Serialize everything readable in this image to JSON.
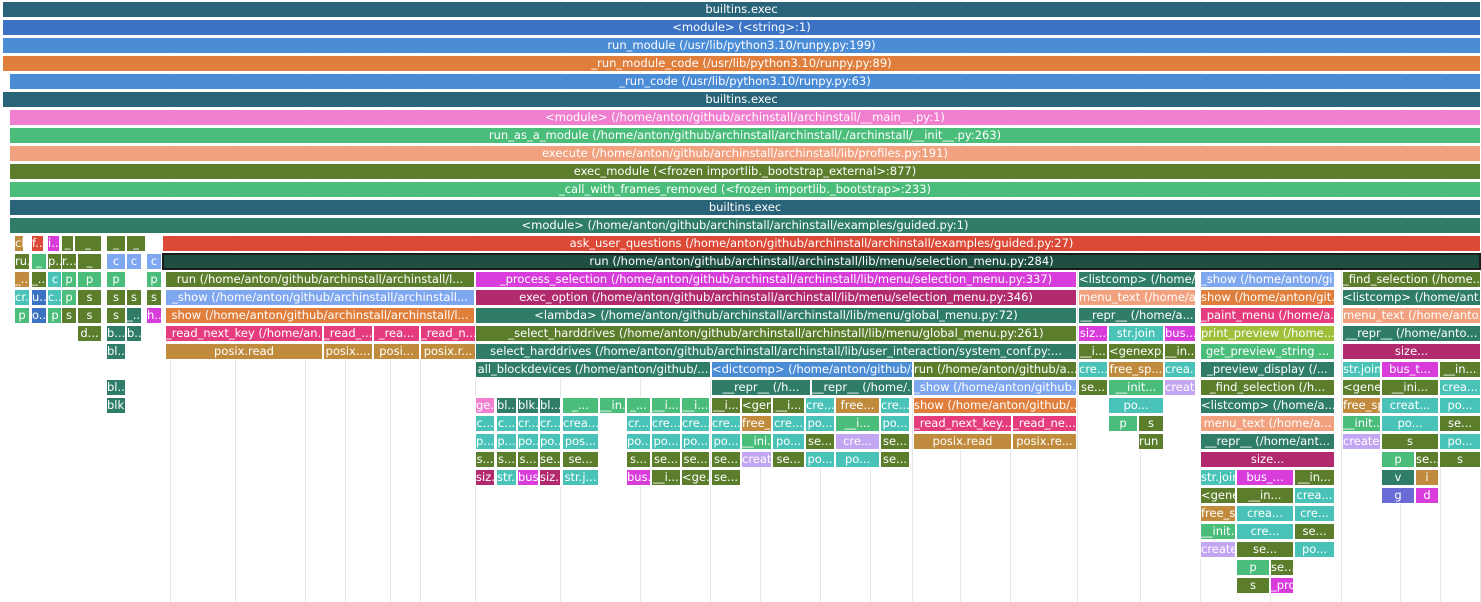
{
  "colors": {
    "c1": "#2a6478",
    "c2": "#3b72c4",
    "c3": "#4a8cd6",
    "c4": "#e07e3c",
    "c5": "#f07fd0",
    "c6": "#49bd79",
    "c7": "#f2a17f",
    "c8": "#5b7d2c",
    "c9": "#dd4937",
    "c10": "#1f4f42",
    "c11": "#d83ddb",
    "c12": "#b22a6e",
    "c13": "#2f7d68",
    "c14": "#e53c7e",
    "c15": "#c08b3c",
    "c16": "#49c2b8",
    "c17": "#7fa7f0",
    "c18": "#6b6bd6",
    "c19": "#9fbf3a",
    "c20": "#c2a6f2"
  },
  "frames": [
    {
      "label": "builtins.exec",
      "color": "c1"
    },
    {
      "label": "<module> (<string>:1)",
      "color": "c2"
    },
    {
      "label": "run_module (/usr/lib/python3.10/runpy.py:199)",
      "color": "c3"
    },
    {
      "label": "_run_module_code (/usr/lib/python3.10/runpy.py:89)",
      "color": "c4"
    },
    {
      "label": "_run_code (/usr/lib/python3.10/runpy.py:63)",
      "color": "c3"
    },
    {
      "label": "builtins.exec",
      "color": "c1"
    },
    {
      "label": "<module> (/home/anton/github/archinstall/archinstall/__main__.py:1)",
      "color": "c5"
    },
    {
      "label": "run_as_a_module (/home/anton/github/archinstall/archinstall/./archinstall/__init__.py:263)",
      "color": "c6"
    },
    {
      "label": "execute (/home/anton/github/archinstall/archinstall/lib/profiles.py:191)",
      "color": "c7"
    },
    {
      "label": "exec_module (<frozen importlib._bootstrap_external>:877)",
      "color": "c8"
    },
    {
      "label": "_call_with_frames_removed (<frozen importlib._bootstrap>:233)",
      "color": "c6"
    },
    {
      "label": "builtins.exec",
      "color": "c1"
    },
    {
      "label": "<module> (/home/anton/github/archinstall/archinstall/examples/guided.py:1)",
      "color": "c13"
    },
    {
      "label": "ask_user_questions (/home/anton/github/archinstall/archinstall/examples/guided.py:27)",
      "color": "c9"
    },
    {
      "label": "run (/home/anton/github/archinstall/archinstall/lib/menu/selection_menu.py:284)",
      "color": "c10"
    },
    {
      "label": "run (/home/anton/github/archinstall/archinstall/l...",
      "color": "c8"
    },
    {
      "label": "_show (/home/anton/github/archinstall/archinstall...",
      "color": "c17"
    },
    {
      "label": "show (/home/anton/github/archinstall/archinstall/l...",
      "color": "c4"
    },
    {
      "label": "_read_next_key (/home/an...",
      "color": "c14"
    },
    {
      "label": "_read_...",
      "color": "c14"
    },
    {
      "label": "_rea...",
      "color": "c14"
    },
    {
      "label": "_read_n...",
      "color": "c14"
    },
    {
      "label": "posix.read",
      "color": "c15"
    },
    {
      "label": "posix....",
      "color": "c15"
    },
    {
      "label": "posi...",
      "color": "c15"
    },
    {
      "label": "posix.r...",
      "color": "c15"
    },
    {
      "label": "_process_selection (/home/anton/github/archinstall/archinstall/lib/menu/selection_menu.py:337)",
      "color": "c11"
    },
    {
      "label": "exec_option (/home/anton/github/archinstall/archinstall/lib/menu/selection_menu.py:346)",
      "color": "c12"
    },
    {
      "label": "<lambda> (/home/anton/github/archinstall/archinstall/lib/menu/global_menu.py:72)",
      "color": "c13"
    },
    {
      "label": "_select_harddrives (/home/anton/github/archinstall/archinstall/lib/menu/global_menu.py:261)",
      "color": "c8"
    },
    {
      "label": "select_harddrives (/home/anton/github/archinstall/archinstall/lib/user_interaction/system_conf.py:...",
      "color": "c13"
    },
    {
      "label": "all_blockdevices (/home/anton/github/...",
      "color": "c13"
    },
    {
      "label": "<dictcomp> (/home/anton/github/archinstall/...",
      "color": "c3"
    },
    {
      "label": "__repr__ (/h...",
      "color": "c13"
    },
    {
      "label": "__repr__ (/home/...",
      "color": "c13"
    },
    {
      "label": "run (/home/anton/github/a...",
      "color": "c8"
    },
    {
      "label": "_show (/home/anton/github...",
      "color": "c17"
    },
    {
      "label": "show (/home/anton/github/...",
      "color": "c4"
    },
    {
      "label": "_read_next_key...",
      "color": "c14"
    },
    {
      "label": "_read_ne...",
      "color": "c14"
    },
    {
      "label": "posix.read",
      "color": "c15"
    },
    {
      "label": "posix.re...",
      "color": "c15"
    },
    {
      "label": "<listcomp> (/home/...",
      "color": "c13"
    },
    {
      "label": "menu_text (/home/a...",
      "color": "c7"
    },
    {
      "label": "__repr__ (/home/a...",
      "color": "c13"
    },
    {
      "label": "siz...",
      "color": "c11"
    },
    {
      "label": "str.join",
      "color": "c16"
    },
    {
      "label": "bus...",
      "color": "c11"
    },
    {
      "label": "__i...",
      "color": "c8"
    },
    {
      "label": "<genexp...",
      "color": "c8"
    },
    {
      "label": "__in...",
      "color": "c8"
    },
    {
      "label": "cre...",
      "color": "c16"
    },
    {
      "label": "free_sp...",
      "color": "c15"
    },
    {
      "label": "crea...",
      "color": "c16"
    },
    {
      "label": "se...",
      "color": "c8"
    },
    {
      "label": "__init...",
      "color": "c6"
    },
    {
      "label": "create...",
      "color": "c20"
    },
    {
      "label": "po...",
      "color": "c16"
    },
    {
      "label": "p",
      "color": "c6"
    },
    {
      "label": "s",
      "color": "c8"
    },
    {
      "label": "run (/home/anton/gith...",
      "color": "c8"
    },
    {
      "label": "_show (/home/anton/gi...",
      "color": "c17"
    },
    {
      "label": "show (/home/anton/git...",
      "color": "c4"
    },
    {
      "label": "_paint_menu (/home/a...",
      "color": "c14"
    },
    {
      "label": "print_preview (/home...",
      "color": "c19"
    },
    {
      "label": "get_preview_string ...",
      "color": "c6"
    },
    {
      "label": "_preview_display (/...",
      "color": "c13"
    },
    {
      "label": "_find_selection (/h...",
      "color": "c8"
    },
    {
      "label": "<listcomp> (/home/a...",
      "color": "c13"
    },
    {
      "label": "menu_text (/home/a...",
      "color": "c7"
    },
    {
      "label": "__repr__ (/home/ant...",
      "color": "c13"
    },
    {
      "label": "size...",
      "color": "c12"
    },
    {
      "label": "str.join",
      "color": "c16"
    },
    {
      "label": "bus_...",
      "color": "c11"
    },
    {
      "label": "__in...",
      "color": "c8"
    },
    {
      "label": "<genexp...",
      "color": "c8"
    },
    {
      "label": "__in...",
      "color": "c8"
    },
    {
      "label": "crea...",
      "color": "c16"
    },
    {
      "label": "free_sp...",
      "color": "c15"
    },
    {
      "label": "crea...",
      "color": "c16"
    },
    {
      "label": "cre...",
      "color": "c16"
    },
    {
      "label": "__init...",
      "color": "c6"
    },
    {
      "label": "cre...",
      "color": "c16"
    },
    {
      "label": "se...",
      "color": "c8"
    },
    {
      "label": "create...",
      "color": "c20"
    },
    {
      "label": "se...",
      "color": "c8"
    },
    {
      "label": "po...",
      "color": "c16"
    },
    {
      "label": "p",
      "color": "c6"
    },
    {
      "label": "se...",
      "color": "c8"
    },
    {
      "label": "s",
      "color": "c8"
    },
    {
      "label": "_process_selection (/home...",
      "color": "c11"
    },
    {
      "label": "_find_selection (/home...",
      "color": "c8"
    },
    {
      "label": "<listcomp> (/home/ant...",
      "color": "c13"
    },
    {
      "label": "menu_text (/home/anto...",
      "color": "c7"
    },
    {
      "label": "__repr__ (/home/anto...",
      "color": "c13"
    },
    {
      "label": "size...",
      "color": "c12"
    },
    {
      "label": "str.join",
      "color": "c16"
    },
    {
      "label": "bus_t...",
      "color": "c11"
    },
    {
      "label": "__in...",
      "color": "c8"
    },
    {
      "label": "<genexp...",
      "color": "c8"
    },
    {
      "label": "__ini...",
      "color": "c8"
    },
    {
      "label": "crea...",
      "color": "c16"
    },
    {
      "label": "free_sp...",
      "color": "c15"
    },
    {
      "label": "creat...",
      "color": "c16"
    },
    {
      "label": "po...",
      "color": "c16"
    },
    {
      "label": "__init...",
      "color": "c6"
    },
    {
      "label": "po...",
      "color": "c16"
    },
    {
      "label": "se...",
      "color": "c8"
    },
    {
      "label": "create...",
      "color": "c20"
    },
    {
      "label": "s",
      "color": "c8"
    },
    {
      "label": "po...",
      "color": "c16"
    },
    {
      "label": "p",
      "color": "c6"
    },
    {
      "label": "se...",
      "color": "c8"
    },
    {
      "label": "s",
      "color": "c8"
    },
    {
      "label": "v",
      "color": "c13"
    },
    {
      "label": "i",
      "color": "c15"
    },
    {
      "label": "g",
      "color": "c18"
    },
    {
      "label": "d",
      "color": "c11"
    },
    {
      "label": "che...",
      "color": "c15"
    },
    {
      "label": "f...",
      "color": "c9"
    },
    {
      "label": "i...",
      "color": "c11"
    },
    {
      "label": "_",
      "color": "c8"
    },
    {
      "label": "_",
      "color": "c8"
    },
    {
      "label": "_",
      "color": "c8"
    },
    {
      "label": "_",
      "color": "c8"
    },
    {
      "label": "ru...",
      "color": "c8"
    },
    {
      "label": "_",
      "color": "c6"
    },
    {
      "label": "p...",
      "color": "c8"
    },
    {
      "label": "r...",
      "color": "c8"
    },
    {
      "label": "_",
      "color": "c8"
    },
    {
      "label": "c",
      "color": "c17"
    },
    {
      "label": "c",
      "color": "c17"
    },
    {
      "label": "c",
      "color": "c17"
    },
    {
      "label": "c",
      "color": "c17"
    },
    {
      "label": "_...",
      "color": "c15"
    },
    {
      "label": "_...",
      "color": "c8"
    },
    {
      "label": "c",
      "color": "c16"
    },
    {
      "label": "p",
      "color": "c6"
    },
    {
      "label": "p",
      "color": "c6"
    },
    {
      "label": "p",
      "color": "c6"
    },
    {
      "label": "p",
      "color": "c6"
    },
    {
      "label": "cr...",
      "color": "c16"
    },
    {
      "label": "u...",
      "color": "c2"
    },
    {
      "label": "c...",
      "color": "c16"
    },
    {
      "label": "p",
      "color": "c6"
    },
    {
      "label": "s",
      "color": "c8"
    },
    {
      "label": "s",
      "color": "c8"
    },
    {
      "label": "s",
      "color": "c8"
    },
    {
      "label": "s",
      "color": "c8"
    },
    {
      "label": "p",
      "color": "c6"
    },
    {
      "label": "o...",
      "color": "c2"
    },
    {
      "label": "p",
      "color": "c6"
    },
    {
      "label": "s",
      "color": "c8"
    },
    {
      "label": "s",
      "color": "c8"
    },
    {
      "label": "s",
      "color": "c8"
    },
    {
      "label": "_...",
      "color": "c13"
    },
    {
      "label": "h...",
      "color": "c11"
    },
    {
      "label": "d...",
      "color": "c8"
    },
    {
      "label": "b...",
      "color": "c13"
    },
    {
      "label": "b...",
      "color": "c13"
    },
    {
      "label": "bl...",
      "color": "c13"
    },
    {
      "label": "bl...",
      "color": "c13"
    },
    {
      "label": "blki...",
      "color": "c13"
    },
    {
      "label": "ge...",
      "color": "c5"
    },
    {
      "label": "bl...",
      "color": "c13"
    },
    {
      "label": "blk...",
      "color": "c13"
    },
    {
      "label": "bl...",
      "color": "c13"
    },
    {
      "label": "_...",
      "color": "c6"
    },
    {
      "label": "__in...",
      "color": "c6"
    },
    {
      "label": "_...",
      "color": "c6"
    },
    {
      "label": "__i...",
      "color": "c6"
    },
    {
      "label": "__i...",
      "color": "c6"
    },
    {
      "label": "c...",
      "color": "c16"
    },
    {
      "label": "c...",
      "color": "c16"
    },
    {
      "label": "cr...",
      "color": "c16"
    },
    {
      "label": "cr...",
      "color": "c16"
    },
    {
      "label": "crea...",
      "color": "c16"
    },
    {
      "label": "cr...",
      "color": "c16"
    },
    {
      "label": "cre...",
      "color": "c16"
    },
    {
      "label": "cre...",
      "color": "c16"
    },
    {
      "label": "p...",
      "color": "c16"
    },
    {
      "label": "p...",
      "color": "c16"
    },
    {
      "label": "po...",
      "color": "c16"
    },
    {
      "label": "po...",
      "color": "c16"
    },
    {
      "label": "pos...",
      "color": "c16"
    },
    {
      "label": "po...",
      "color": "c16"
    },
    {
      "label": "po...",
      "color": "c16"
    },
    {
      "label": "po...",
      "color": "c16"
    },
    {
      "label": "s...",
      "color": "c8"
    },
    {
      "label": "s...",
      "color": "c8"
    },
    {
      "label": "s...",
      "color": "c8"
    },
    {
      "label": "se...",
      "color": "c8"
    },
    {
      "label": "se...",
      "color": "c8"
    },
    {
      "label": "s...",
      "color": "c8"
    },
    {
      "label": "se...",
      "color": "c8"
    },
    {
      "label": "se...",
      "color": "c8"
    },
    {
      "label": "siz...",
      "color": "c12"
    },
    {
      "label": "str...",
      "color": "c16"
    },
    {
      "label": "bus...",
      "color": "c11"
    },
    {
      "label": "siz...",
      "color": "c12"
    },
    {
      "label": "str.j...",
      "color": "c16"
    },
    {
      "label": "bus...",
      "color": "c11"
    },
    {
      "label": "__i...",
      "color": "c8"
    },
    {
      "label": "<ge...",
      "color": "c8"
    },
    {
      "label": "__i...",
      "color": "c8"
    },
    {
      "label": "<gene...",
      "color": "c8"
    },
    {
      "label": "__i...",
      "color": "c8"
    },
    {
      "label": "cre...",
      "color": "c16"
    },
    {
      "label": "free...",
      "color": "c15"
    },
    {
      "label": "cre...",
      "color": "c16"
    },
    {
      "label": "cre...",
      "color": "c16"
    },
    {
      "label": "free_...",
      "color": "c15"
    },
    {
      "label": "cre...",
      "color": "c16"
    },
    {
      "label": "po...",
      "color": "c16"
    },
    {
      "label": "__i...",
      "color": "c6"
    },
    {
      "label": "po...",
      "color": "c16"
    },
    {
      "label": "po...",
      "color": "c16"
    },
    {
      "label": "__ini...",
      "color": "c6"
    },
    {
      "label": "po...",
      "color": "c16"
    },
    {
      "label": "se...",
      "color": "c8"
    },
    {
      "label": "cre...",
      "color": "c20"
    },
    {
      "label": "se...",
      "color": "c8"
    },
    {
      "label": "se...",
      "color": "c8"
    },
    {
      "label": "creat...",
      "color": "c20"
    },
    {
      "label": "se...",
      "color": "c8"
    },
    {
      "label": "po...",
      "color": "c16"
    },
    {
      "label": "po...",
      "color": "c16"
    },
    {
      "label": "se...",
      "color": "c8"
    },
    {
      "label": "se...",
      "color": "c8"
    }
  ]
}
